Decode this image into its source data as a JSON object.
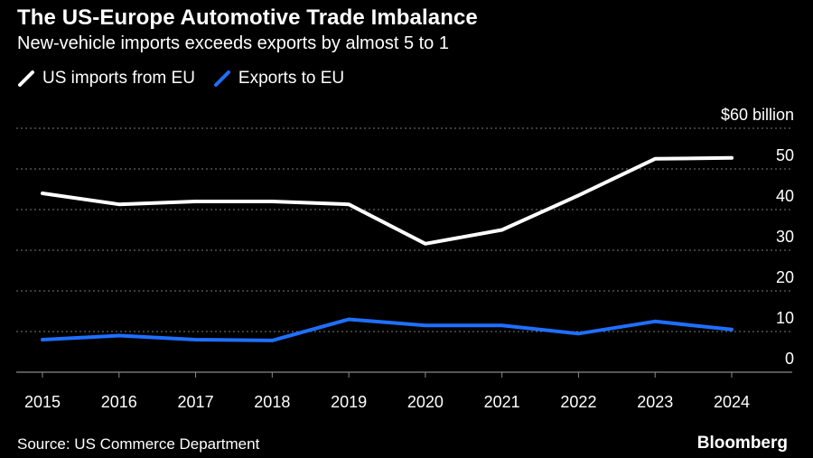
{
  "title": "The US-Europe Automotive Trade Imbalance",
  "subtitle": "New-vehicle imports exceeds exports by almost 5 to 1",
  "source": "Source: US Commerce Department",
  "brand": "Bloomberg",
  "legend": [
    {
      "label": "US imports from EU",
      "color": "#ffffff"
    },
    {
      "label": "Exports to EU",
      "color": "#1f6fff"
    }
  ],
  "chart_data": {
    "type": "line",
    "x": [
      "2015",
      "2016",
      "2017",
      "2018",
      "2019",
      "2020",
      "2021",
      "2022",
      "2023",
      "2024"
    ],
    "series": [
      {
        "name": "US imports from EU",
        "color": "#ffffff",
        "values": [
          44,
          41.3,
          42,
          42,
          41.3,
          31.6,
          35,
          43.5,
          52.5,
          52.7
        ]
      },
      {
        "name": "Exports to EU",
        "color": "#1f6fff",
        "values": [
          8,
          9,
          8,
          7.8,
          13,
          11.5,
          11.5,
          9.5,
          12.5,
          10.5
        ]
      }
    ],
    "y_ticks": [
      "$60 billion",
      "50",
      "40",
      "30",
      "20",
      "10",
      "0"
    ],
    "y_tick_values": [
      60,
      50,
      40,
      30,
      20,
      10,
      0
    ],
    "ylim": [
      0,
      60
    ],
    "grid": true,
    "grid_style": "dotted",
    "legend_position": "top-left"
  }
}
